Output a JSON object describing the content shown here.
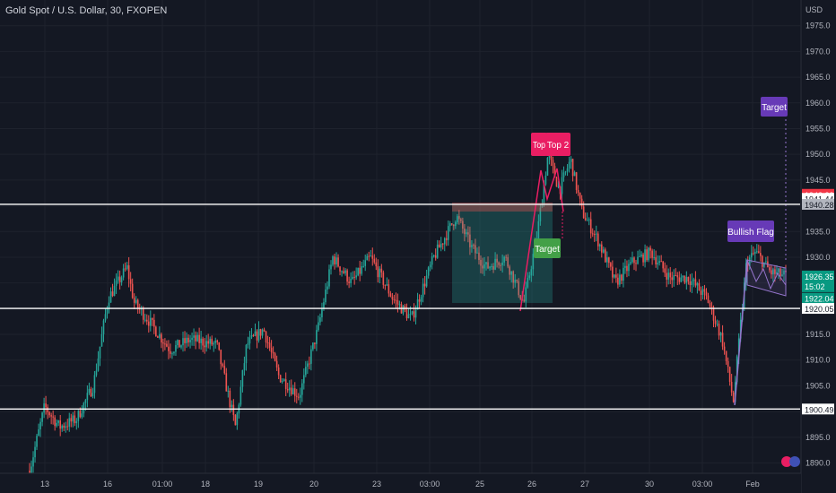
{
  "header": {
    "title": "Gold Spot / U.S. Dollar, 30, FXOPEN"
  },
  "colors": {
    "background": "#141823",
    "grid": "#1e222d",
    "text": "#b2b5be",
    "bull": "#26a69a",
    "bear": "#ef5350",
    "level_line": "#ffffff",
    "pink_label": "#e91e63",
    "green_label": "#43a047",
    "purple_label": "#673ab7",
    "purple_line": "#9575cd"
  },
  "chart_data": {
    "type": "candlestick",
    "currency": "USD",
    "ylim": [
      1888,
      1980
    ],
    "y_ticks": [
      1890,
      1895,
      1900,
      1905,
      1910,
      1915,
      1920,
      1925,
      1930,
      1935,
      1940,
      1945,
      1950,
      1955,
      1960,
      1965,
      1970,
      1975
    ],
    "x_tick_labels": [
      "13",
      "16",
      "01:00",
      "18",
      "19",
      "20",
      "23",
      "03:00",
      "25",
      "26",
      "27",
      "30",
      "03:00",
      "Feb"
    ],
    "price_path": [
      {
        "t": 0.0,
        "p": 1888.5
      },
      {
        "t": 0.8,
        "p": 1901.0
      },
      {
        "t": 1.6,
        "p": 1897.0
      },
      {
        "t": 2.5,
        "p": 1898.5
      },
      {
        "t": 3.4,
        "p": 1905.0
      },
      {
        "t": 4.2,
        "p": 1922.0
      },
      {
        "t": 5.2,
        "p": 1928.0
      },
      {
        "t": 5.6,
        "p": 1921.0
      },
      {
        "t": 6.3,
        "p": 1918.0
      },
      {
        "t": 7.5,
        "p": 1912.0
      },
      {
        "t": 8.6,
        "p": 1914.0
      },
      {
        "t": 10.0,
        "p": 1913.0
      },
      {
        "t": 11.0,
        "p": 1897.0
      },
      {
        "t": 11.6,
        "p": 1913.0
      },
      {
        "t": 12.5,
        "p": 1916.0
      },
      {
        "t": 13.3,
        "p": 1907.0
      },
      {
        "t": 14.4,
        "p": 1903.0
      },
      {
        "t": 15.4,
        "p": 1916.0
      },
      {
        "t": 16.2,
        "p": 1930.0
      },
      {
        "t": 17.2,
        "p": 1925.0
      },
      {
        "t": 18.2,
        "p": 1930.0
      },
      {
        "t": 19.4,
        "p": 1922.0
      },
      {
        "t": 20.4,
        "p": 1918.0
      },
      {
        "t": 21.6,
        "p": 1930.0
      },
      {
        "t": 22.8,
        "p": 1938.0
      },
      {
        "t": 23.6,
        "p": 1932.0
      },
      {
        "t": 24.4,
        "p": 1928.0
      },
      {
        "t": 25.4,
        "p": 1930.0
      },
      {
        "t": 26.4,
        "p": 1921.0
      },
      {
        "t": 27.1,
        "p": 1934.0
      },
      {
        "t": 27.7,
        "p": 1950.0
      },
      {
        "t": 28.3,
        "p": 1943.0
      },
      {
        "t": 28.9,
        "p": 1949.0
      },
      {
        "t": 29.5,
        "p": 1939.0
      },
      {
        "t": 30.4,
        "p": 1933.0
      },
      {
        "t": 31.3,
        "p": 1925.0
      },
      {
        "t": 32.2,
        "p": 1929.0
      },
      {
        "t": 33.2,
        "p": 1931.0
      },
      {
        "t": 34.2,
        "p": 1926.0
      },
      {
        "t": 35.2,
        "p": 1926.0
      },
      {
        "t": 36.2,
        "p": 1922.0
      },
      {
        "t": 37.0,
        "p": 1914.0
      },
      {
        "t": 37.6,
        "p": 1902.0
      },
      {
        "t": 38.3,
        "p": 1929.0
      },
      {
        "t": 38.8,
        "p": 1931.0
      },
      {
        "t": 39.6,
        "p": 1927.0
      },
      {
        "t": 40.4,
        "p": 1926.4
      }
    ],
    "horizontal_levels": [
      1940.28,
      1920.05,
      1900.49
    ],
    "price_labels": [
      {
        "text": "1942.23",
        "price": 1942.23,
        "style": "red"
      },
      {
        "text": "1941.44",
        "price": 1941.44,
        "style": "light"
      },
      {
        "text": "1940.28",
        "price": 1940.28,
        "style": "gray"
      },
      {
        "text": "1926.35",
        "price": 1926.35,
        "style": "green",
        "sub": "15:02"
      },
      {
        "text": "1922.04",
        "price": 1922.04,
        "style": "green"
      },
      {
        "text": "1920.05",
        "price": 1920.05,
        "style": "light"
      },
      {
        "text": "1900.49",
        "price": 1900.49,
        "style": "light"
      }
    ],
    "annotations": [
      {
        "text": "Top",
        "type": "pink"
      },
      {
        "text": "Top 2",
        "type": "pink"
      },
      {
        "text": "Target",
        "type": "green"
      },
      {
        "text": "Bullish Flag",
        "type": "purple"
      },
      {
        "text": "Target",
        "type": "purple"
      }
    ]
  }
}
